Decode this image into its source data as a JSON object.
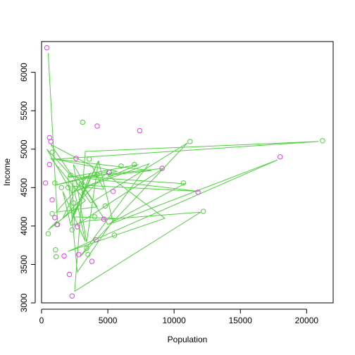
{
  "chart_data": {
    "type": "scatter",
    "title": "",
    "xlabel": "Population",
    "ylabel": "Income",
    "xlim": [
      0,
      22000
    ],
    "ylim": [
      3000,
      6400
    ],
    "x_ticks": [
      0,
      5000,
      10000,
      15000,
      20000
    ],
    "y_ticks": [
      3000,
      3500,
      4000,
      4500,
      5000,
      5500,
      6000
    ],
    "grid": false,
    "legend": "none",
    "colors": {
      "line": "#4fcf3f",
      "green_points": "#4fcf3f",
      "magenta_points": "#e23fe6"
    },
    "series": [
      {
        "marker": "open-circle",
        "color": "#4fcf3f",
        "x": [
          2200,
          3100,
          11200,
          21200,
          1000,
          500,
          2000,
          10700,
          4200,
          3600,
          1050,
          6000,
          800,
          3000,
          2300,
          1500,
          800,
          4000,
          1100,
          7000,
          2400,
          4800,
          12200,
          3500,
          5500,
          3400,
          1150
        ],
        "y": [
          4660,
          5350,
          5100,
          5110,
          4560,
          3900,
          4500,
          4560,
          4670,
          4870,
          3690,
          4780,
          4960,
          4550,
          3950,
          4500,
          4160,
          4120,
          3600,
          4800,
          4300,
          4260,
          4190,
          3630,
          3880,
          3710,
          4020
        ]
      },
      {
        "marker": "open-circle",
        "color": "#e23fe6",
        "x": [
          400,
          600,
          700,
          600,
          2600,
          4200,
          7400,
          300,
          800,
          1000,
          5100,
          5400,
          4700,
          11800,
          9100,
          18000,
          2700,
          1200,
          1700,
          2800,
          2100,
          4100,
          3800,
          2300
        ],
        "y": [
          6320,
          5150,
          5100,
          4800,
          4880,
          5300,
          5240,
          4560,
          4340,
          4110,
          4700,
          4450,
          4090,
          4440,
          4750,
          4900,
          3990,
          4020,
          3610,
          3630,
          3370,
          3820,
          3540,
          3090
        ]
      }
    ],
    "line_path": {
      "color": "#4fcf3f",
      "x": [
        500,
        1200,
        500,
        3300,
        700,
        5700,
        1000,
        5000,
        1600,
        2400,
        400,
        2300,
        7300,
        2200,
        8100,
        2900,
        11000,
        3700,
        700,
        3800,
        4700,
        2300,
        2500,
        9200,
        3200,
        10800,
        5000,
        2600,
        4200,
        1100,
        3700,
        2200,
        4300,
        2300,
        5500,
        2700,
        2000,
        11900,
        3300,
        2400,
        3400,
        4300,
        5400,
        17800,
        2000,
        9300,
        5000,
        8300,
        1100,
        20900,
        3300,
        2500,
        12000,
        3600,
        2200,
        1600,
        3300,
        2300
      ],
      "y": [
        6250,
        4070,
        3950,
        4330,
        4880,
        4710,
        4530,
        4710,
        4100,
        4400,
        5000,
        4640,
        4800,
        4430,
        4810,
        3600,
        5080,
        4300,
        5060,
        4780,
        4480,
        4520,
        4000,
        4750,
        4640,
        4550,
        4020,
        4660,
        4250,
        4180,
        4690,
        4040,
        4850,
        4120,
        4100,
        3400,
        4650,
        4450,
        4530,
        4800,
        3790,
        4850,
        4040,
        4860,
        3670,
        4100,
        4660,
        4720,
        4870,
        5100,
        4970,
        3150,
        4180,
        4070,
        4010,
        4450,
        3800,
        4600
      ]
    }
  }
}
